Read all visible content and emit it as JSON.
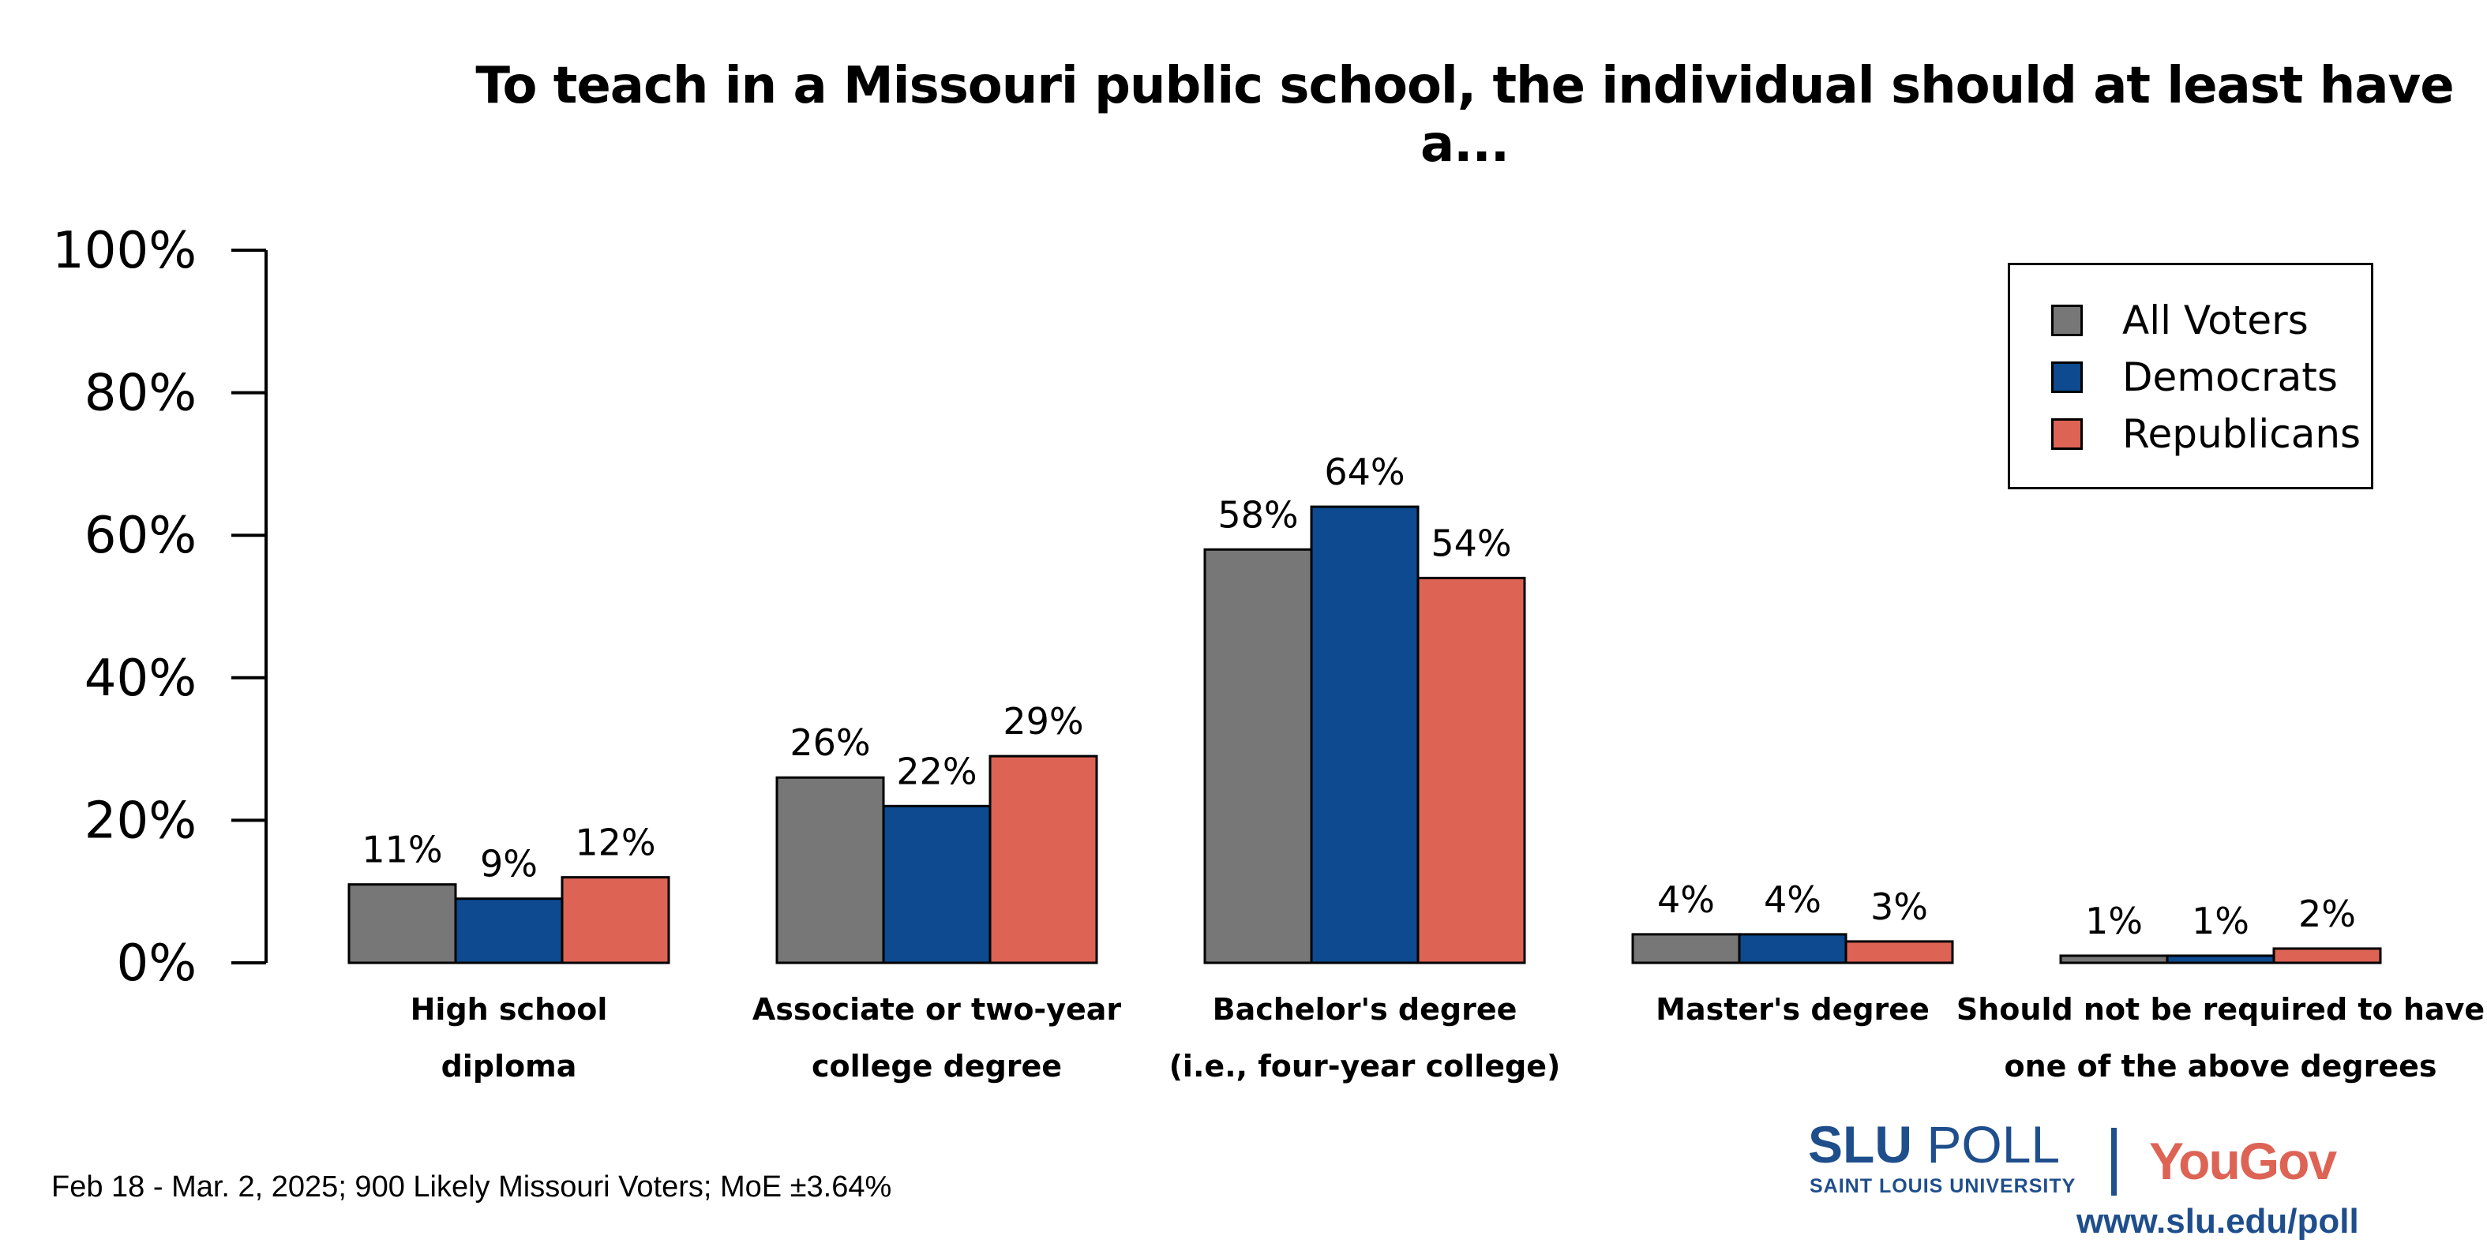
{
  "chart_data": {
    "type": "bar",
    "title": "To teach in a Missouri public school, the individual should at least have a...",
    "categories": [
      [
        "High school",
        "diploma"
      ],
      [
        "Associate or two-year",
        "college degree"
      ],
      [
        "Bachelor's degree",
        "(i.e., four-year college)"
      ],
      [
        "Master's degree"
      ],
      [
        "Should not be required to have",
        "one of the above degrees"
      ]
    ],
    "series": [
      {
        "name": "All Voters",
        "color": "#777777",
        "values": [
          11,
          26,
          58,
          4,
          1
        ]
      },
      {
        "name": "Democrats",
        "color": "#0d4a8f",
        "values": [
          9,
          22,
          64,
          4,
          1
        ]
      },
      {
        "name": "Republicans",
        "color": "#dd6355",
        "values": [
          12,
          29,
          54,
          3,
          2
        ]
      }
    ],
    "ylim": [
      0,
      100
    ],
    "yticks": [
      "0%",
      "20%",
      "40%",
      "60%",
      "80%",
      "100%"
    ],
    "value_suffix": "%",
    "grid": false,
    "legend_position": "top-right",
    "xlabel": "",
    "ylabel": ""
  },
  "footnote": "Feb 18 - Mar. 2, 2025; 900 Likely Missouri Voters; MoE ±3.64%",
  "logo": {
    "slu_bold": "SLU",
    "slu_poll": " POLL",
    "slu_sub": "SAINT LOUIS UNIVERSITY",
    "yougov": "YouGov",
    "url": "www.slu.edu/poll"
  }
}
